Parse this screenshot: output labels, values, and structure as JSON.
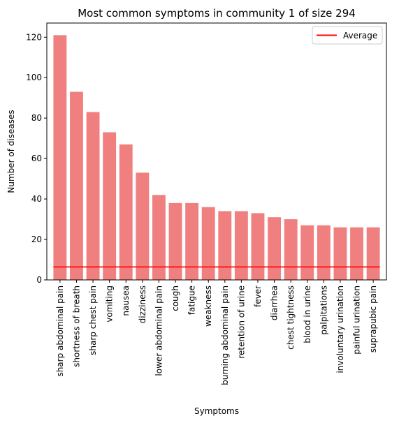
{
  "chart_data": {
    "type": "bar",
    "title": "Most common symptoms in community 1 of size 294",
    "xlabel": "Symptoms",
    "ylabel": "Number of diseases",
    "ylim": [
      0,
      127
    ],
    "yticks": [
      0,
      20,
      40,
      60,
      80,
      100,
      120
    ],
    "categories": [
      "sharp abdominal pain",
      "shortness of breath",
      "sharp chest pain",
      "vomiting",
      "nausea",
      "dizziness",
      "lower abdominal pain",
      "cough",
      "fatigue",
      "weakness",
      "burning abdominal pain",
      "retention of urine",
      "fever",
      "diarrhea",
      "chest tightness",
      "blood in urine",
      "palpitations",
      "involuntary urination",
      "painful urination",
      "suprapubic pain"
    ],
    "values": [
      121,
      93,
      83,
      73,
      67,
      53,
      42,
      38,
      38,
      36,
      34,
      34,
      33,
      31,
      30,
      27,
      27,
      26,
      26,
      26
    ],
    "bar_color": "#f08080",
    "average": {
      "name": "Average",
      "value": 6.4,
      "color": "#ff0000"
    },
    "legend": {
      "placement": "top-right",
      "entries": [
        "Average"
      ]
    },
    "grid": false
  }
}
